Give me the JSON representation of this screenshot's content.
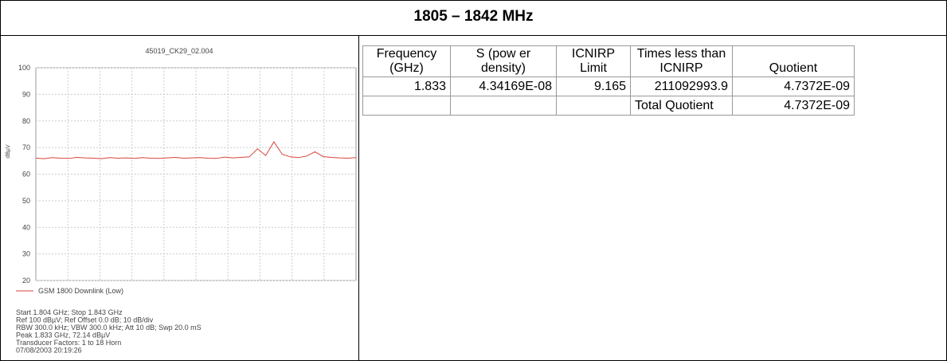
{
  "header": {
    "title": "1805 – 1842 MHz"
  },
  "spectrum": {
    "title": "45019_CK29_02.004",
    "ylabel": "dBµV",
    "ylim": [
      20,
      100
    ],
    "yticks": [
      20,
      30,
      40,
      50,
      60,
      70,
      80,
      90,
      100
    ],
    "xlim": [
      1.804,
      1.843
    ],
    "series": [
      {
        "name": "GSM 1800 Downlink (Low)",
        "color": "#d9443a",
        "x": [
          1.804,
          1.805,
          1.806,
          1.807,
          1.808,
          1.809,
          1.81,
          1.811,
          1.812,
          1.813,
          1.814,
          1.815,
          1.816,
          1.817,
          1.818,
          1.819,
          1.82,
          1.821,
          1.822,
          1.823,
          1.824,
          1.825,
          1.826,
          1.827,
          1.828,
          1.829,
          1.83,
          1.831,
          1.832,
          1.833,
          1.834,
          1.835,
          1.836,
          1.837,
          1.838,
          1.839,
          1.84,
          1.841,
          1.842,
          1.843
        ],
        "values": [
          66,
          65.8,
          66.2,
          66,
          65.9,
          66.3,
          66.1,
          66,
          65.8,
          66.2,
          66,
          66.1,
          65.9,
          66.2,
          66,
          65.9,
          66.1,
          66.3,
          66,
          66.1,
          66.2,
          66,
          65.9,
          66.4,
          66.1,
          66.3,
          66.5,
          69.5,
          67,
          72.14,
          67.5,
          66.5,
          66.2,
          66.8,
          68.4,
          66.6,
          66.3,
          66.1,
          66,
          66.2
        ]
      }
    ],
    "notes": [
      "Start 1.804 GHz; Stop 1.843 GHz",
      "Ref 100 dBµV; Ref Offset 0.0 dB; 10 dB/div",
      "RBW 300.0 kHz; VBW 300.0 kHz; Att 10 dB; Swp 20.0 mS",
      "Peak 1.833 GHz, 72.14 dBµV",
      "Transducer Factors: 1 to 18 Horn",
      "07/08/2003 20:19:26"
    ]
  },
  "table": {
    "header": [
      [
        "Frequency",
        "(GHz)"
      ],
      [
        "S (pow er",
        "density)"
      ],
      [
        "ICNIRP",
        "Limit"
      ],
      [
        "Times less than",
        "ICNIRP"
      ],
      [
        "Quotient"
      ]
    ],
    "rows": [
      [
        "1.833",
        "4.34169E-08",
        "9.165",
        "211092993.9",
        "4.7372E-09"
      ],
      [
        null,
        null,
        null,
        "Total Quotient",
        "4.7372E-09"
      ]
    ]
  }
}
